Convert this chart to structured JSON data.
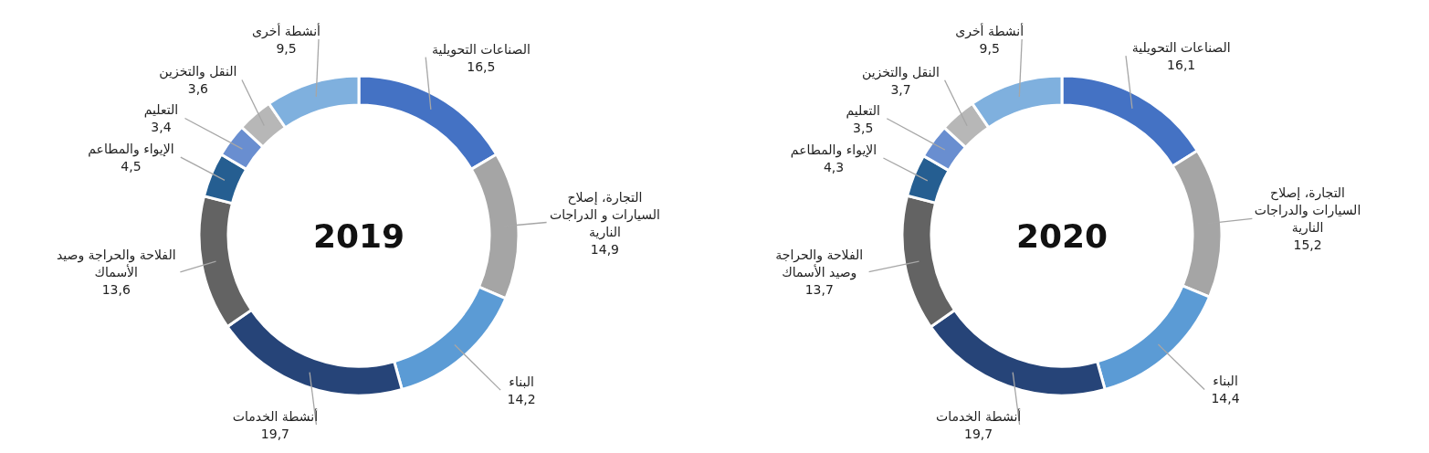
{
  "chart_data": [
    {
      "type": "donut",
      "title": "2019",
      "categories": [
        "الصناعات التحويلية",
        "التجارة، إصلاح\nالسيارات و الدراجات\nالنارية",
        "البناء",
        "أنشطة الخدمات",
        "الفلاحة والحراجة وصيد\nالأسماك",
        "الإيواء والمطاعم",
        "التعليم",
        "النقل والتخزين",
        "أنشطة أخرى"
      ],
      "values": [
        16.5,
        14.9,
        14.2,
        19.7,
        13.6,
        4.5,
        3.4,
        3.6,
        9.5
      ],
      "value_labels": [
        "16,5",
        "14,9",
        "14,2",
        "19,7",
        "13,6",
        "4,5",
        "3,4",
        "3,6",
        "9,5"
      ],
      "colors": [
        "#4472c4",
        "#a5a5a5",
        "#5b9bd5",
        "#264478",
        "#636363",
        "#255e91",
        "#698ed0",
        "#b7b7b7",
        "#7fb0de"
      ]
    },
    {
      "type": "donut",
      "title": "2020",
      "categories": [
        "الصناعات التحويلية",
        "التجارة، إصلاح\nالسيارات والدراجات\nالنارية",
        "البناء",
        "أنشطة الخدمات",
        "الفلاحة والحراجة\nوصيد الأسماك",
        "الإيواء والمطاعم",
        "التعليم",
        "النقل والتخزين",
        "أنشطة أخرى"
      ],
      "values": [
        16.1,
        15.2,
        14.4,
        19.7,
        13.7,
        4.3,
        3.5,
        3.7,
        9.5
      ],
      "value_labels": [
        "16,1",
        "15,2",
        "14,4",
        "19,7",
        "13,7",
        "4,3",
        "3,5",
        "3,7",
        "9,5"
      ],
      "colors": [
        "#4472c4",
        "#a5a5a5",
        "#5b9bd5",
        "#264478",
        "#636363",
        "#255e91",
        "#698ed0",
        "#b7b7b7",
        "#7fb0de"
      ]
    }
  ]
}
